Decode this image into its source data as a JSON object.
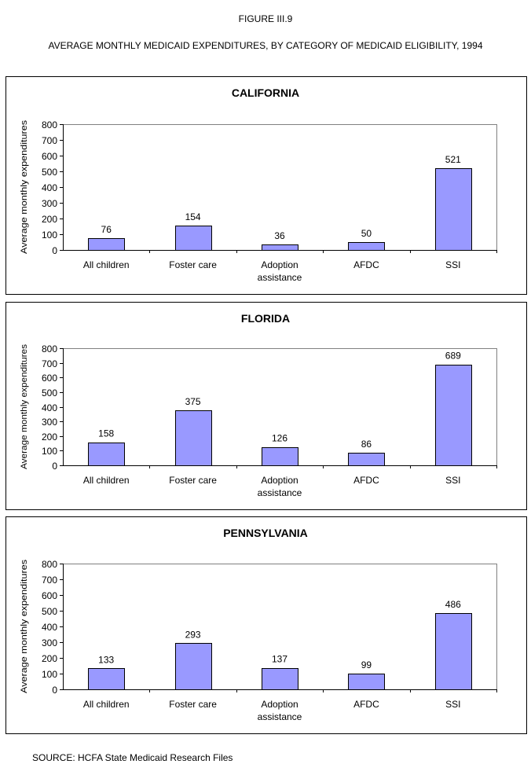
{
  "figure_label": "FIGURE III.9",
  "figure_title": "AVERAGE MONTHLY MEDICAID EXPENDITURES, BY CATEGORY OF MEDICAID ELIGIBILITY, 1994",
  "source": "SOURCE: HCFA State Medicaid Research Files",
  "bar_color": "#9999FF",
  "chart_data": [
    {
      "type": "bar",
      "title": "CALIFORNIA",
      "ylabel": "Average monthly expenditures",
      "ylim": [
        0,
        800
      ],
      "yticks": [
        0,
        100,
        200,
        300,
        400,
        500,
        600,
        700,
        800
      ],
      "grid": false,
      "categories": [
        "All children",
        "Foster care",
        "Adoption assistance",
        "AFDC",
        "SSI"
      ],
      "values": [
        76,
        154,
        36,
        50,
        521
      ]
    },
    {
      "type": "bar",
      "title": "FLORIDA",
      "ylabel": "Average monthly expenditures",
      "ylim": [
        0,
        800
      ],
      "yticks": [
        0,
        100,
        200,
        300,
        400,
        500,
        600,
        700,
        800
      ],
      "grid": false,
      "categories": [
        "All children",
        "Foster care",
        "Adoption assistance",
        "AFDC",
        "SSI"
      ],
      "values": [
        158,
        375,
        126,
        86,
        689
      ]
    },
    {
      "type": "bar",
      "title": "PENNSYLVANIA",
      "ylabel": "Average monthly expenditures",
      "ylim": [
        0,
        800
      ],
      "yticks": [
        0,
        100,
        200,
        300,
        400,
        500,
        600,
        700,
        800
      ],
      "grid": false,
      "categories": [
        "All children",
        "Foster care",
        "Adoption assistance",
        "AFDC",
        "SSI"
      ],
      "values": [
        133,
        293,
        137,
        99,
        486
      ]
    }
  ]
}
